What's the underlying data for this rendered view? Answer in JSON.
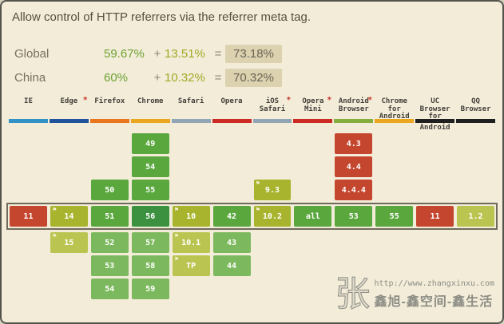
{
  "title": "Allow control of HTTP referrers via the referrer meta tag.",
  "stats": {
    "rows": [
      {
        "region": "Global",
        "supported": "59.67%",
        "plus": "+",
        "partial": "13.51%",
        "equals": "=",
        "total": "73.18%"
      },
      {
        "region": "China",
        "supported": "60%",
        "plus": "+",
        "partial": "10.32%",
        "equals": "=",
        "total": "70.32%"
      }
    ]
  },
  "icons": {
    "flag": "⚑",
    "note_asterisk": "*"
  },
  "browsers": [
    {
      "name": "IE",
      "lines": [
        "IE"
      ],
      "asterisk": false,
      "bar_color": "#3092c7"
    },
    {
      "name": "Edge",
      "lines": [
        "Edge"
      ],
      "asterisk": true,
      "bar_color": "#20549b"
    },
    {
      "name": "Firefox",
      "lines": [
        "Firefox"
      ],
      "asterisk": false,
      "bar_color": "#e9761e"
    },
    {
      "name": "Chrome",
      "lines": [
        "Chrome"
      ],
      "asterisk": false,
      "bar_color": "#eca51e"
    },
    {
      "name": "Safari",
      "lines": [
        "Safari"
      ],
      "asterisk": false,
      "bar_color": "#90a6b4"
    },
    {
      "name": "Opera",
      "lines": [
        "Opera"
      ],
      "asterisk": false,
      "bar_color": "#cb2b23"
    },
    {
      "name": "iOS Safari",
      "lines": [
        "iOS",
        "Safari"
      ],
      "asterisk": true,
      "bar_color": "#90a6b4"
    },
    {
      "name": "Opera Mini",
      "lines": [
        "Opera",
        "Mini"
      ],
      "asterisk": true,
      "bar_color": "#cb2b23"
    },
    {
      "name": "Android Browser",
      "lines": [
        "Android",
        "Browser"
      ],
      "asterisk": true,
      "bar_color": "#86ae3f"
    },
    {
      "name": "Chrome for Android",
      "lines": [
        "Chrome",
        "for",
        "Android"
      ],
      "asterisk": false,
      "bar_color": "#eca51e"
    },
    {
      "name": "UC Browser for Android",
      "lines": [
        "UC",
        "Browser",
        "for"
      ],
      "sub_lines": [
        "Android"
      ],
      "asterisk": false,
      "bar_color": "#1f1f1f"
    },
    {
      "name": "QQ Browser",
      "lines": [
        "QQ",
        "Browser"
      ],
      "asterisk": false,
      "bar_color": "#1f1f1f"
    }
  ],
  "support_colors": {
    "y": "#5aa73e",
    "y_future": "#7cb95e",
    "y_current": "#3c9140",
    "a": "#a8b42e",
    "a_future": "#bac551",
    "n": "#c5462f"
  },
  "grid_rows": [
    {
      "current": false,
      "cells": [
        {
          "col": 3,
          "label": "49",
          "support": "y"
        },
        {
          "col": 8,
          "label": "4.3",
          "support": "n"
        }
      ]
    },
    {
      "current": false,
      "cells": [
        {
          "col": 3,
          "label": "54",
          "support": "y"
        },
        {
          "col": 8,
          "label": "4.4",
          "support": "n"
        }
      ]
    },
    {
      "current": false,
      "cells": [
        {
          "col": 2,
          "label": "50",
          "support": "y"
        },
        {
          "col": 3,
          "label": "55",
          "support": "y"
        },
        {
          "col": 6,
          "label": "9.3",
          "support": "a",
          "flag": true
        },
        {
          "col": 8,
          "label": "4.4.4",
          "support": "n"
        }
      ]
    },
    {
      "current": true,
      "cells": [
        {
          "col": 0,
          "label": "11",
          "support": "n"
        },
        {
          "col": 1,
          "label": "14",
          "support": "a",
          "flag": true
        },
        {
          "col": 2,
          "label": "51",
          "support": "y"
        },
        {
          "col": 3,
          "label": "56",
          "support": "y_current"
        },
        {
          "col": 4,
          "label": "10",
          "support": "a",
          "flag": true
        },
        {
          "col": 5,
          "label": "42",
          "support": "y"
        },
        {
          "col": 6,
          "label": "10.2",
          "support": "a",
          "flag": true
        },
        {
          "col": 7,
          "label": "all",
          "support": "y"
        },
        {
          "col": 8,
          "label": "53",
          "support": "y"
        },
        {
          "col": 9,
          "label": "55",
          "support": "y"
        },
        {
          "col": 10,
          "label": "11",
          "support": "n"
        },
        {
          "col": 11,
          "label": "1.2",
          "support": "a_future"
        }
      ]
    },
    {
      "current": false,
      "cells": [
        {
          "col": 1,
          "label": "15",
          "support": "a_future",
          "flag": true
        },
        {
          "col": 2,
          "label": "52",
          "support": "y_future"
        },
        {
          "col": 3,
          "label": "57",
          "support": "y_future"
        },
        {
          "col": 4,
          "label": "10.1",
          "support": "a_future",
          "flag": true
        },
        {
          "col": 5,
          "label": "43",
          "support": "y_future"
        }
      ]
    },
    {
      "current": false,
      "cells": [
        {
          "col": 2,
          "label": "53",
          "support": "y_future"
        },
        {
          "col": 3,
          "label": "58",
          "support": "y_future"
        },
        {
          "col": 4,
          "label": "TP",
          "support": "a_future",
          "flag": true
        },
        {
          "col": 5,
          "label": "44",
          "support": "y_future"
        }
      ]
    },
    {
      "current": false,
      "cells": [
        {
          "col": 2,
          "label": "54",
          "support": "y_future"
        },
        {
          "col": 3,
          "label": "59",
          "support": "y_future"
        }
      ]
    }
  ],
  "watermark": {
    "big_char": "张",
    "url": "http://www.zhangxinxu.com",
    "name": "鑫旭-鑫空间-鑫生活"
  }
}
